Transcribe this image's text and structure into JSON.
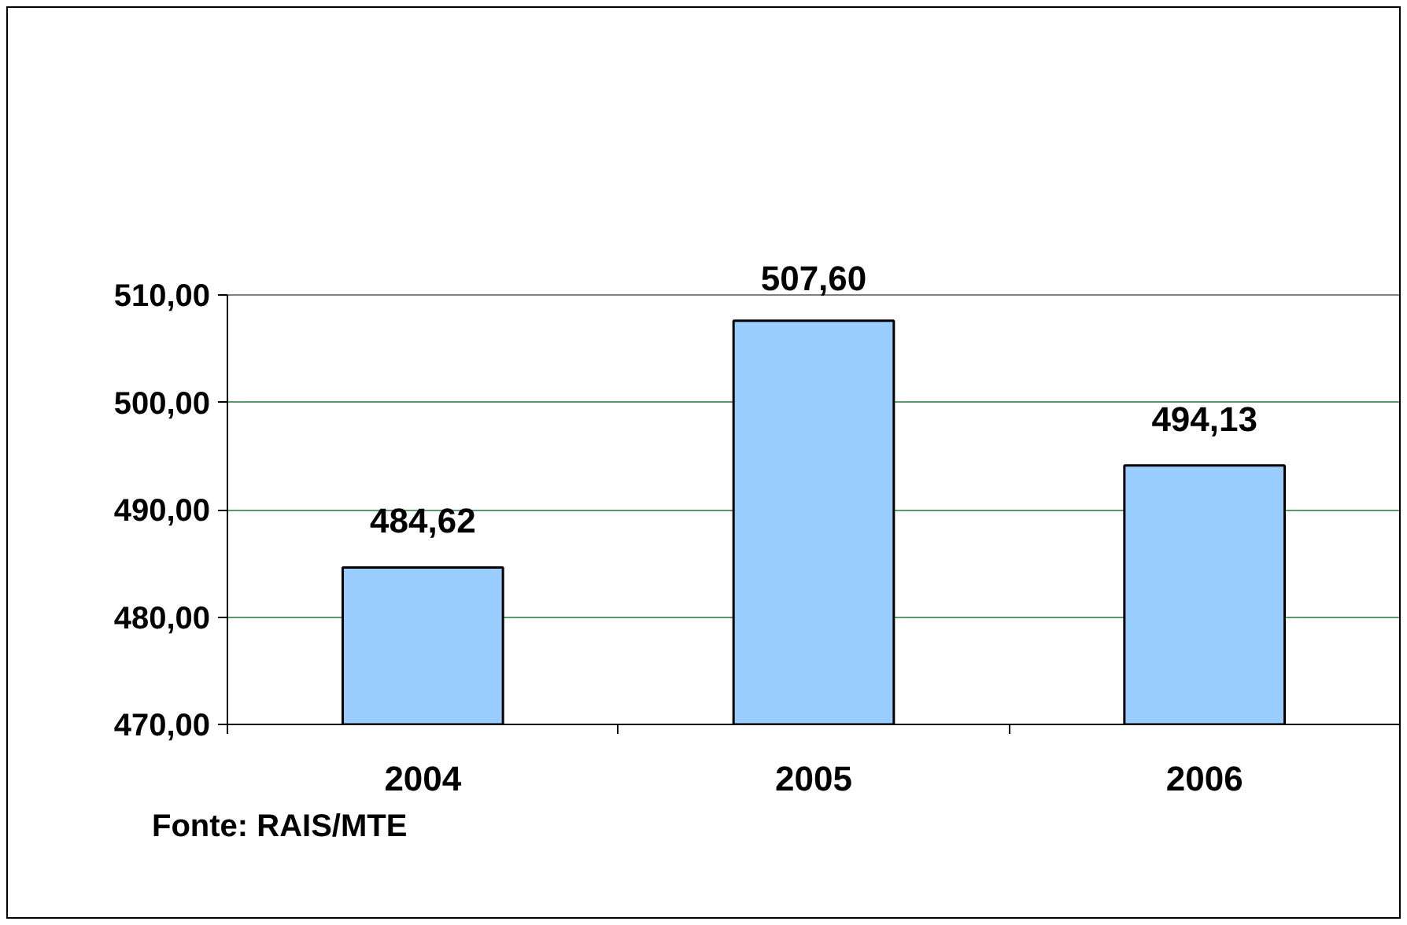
{
  "chart_data": {
    "type": "bar",
    "categories": [
      "2004",
      "2005",
      "2006"
    ],
    "values": [
      484.62,
      507.6,
      494.13
    ],
    "value_labels": [
      "484,62",
      "507,60",
      "494,13"
    ],
    "color": "#99ccff",
    "ylim": [
      470,
      510
    ],
    "yticks": [
      {
        "value": 470,
        "label": "470,00"
      },
      {
        "value": 480,
        "label": "480,00"
      },
      {
        "value": 490,
        "label": "490,00"
      },
      {
        "value": 500,
        "label": "500,00"
      },
      {
        "value": 510,
        "label": "510,00"
      }
    ],
    "grid": "y",
    "annotations": [
      "Fonte: RAIS/MTE"
    ]
  }
}
